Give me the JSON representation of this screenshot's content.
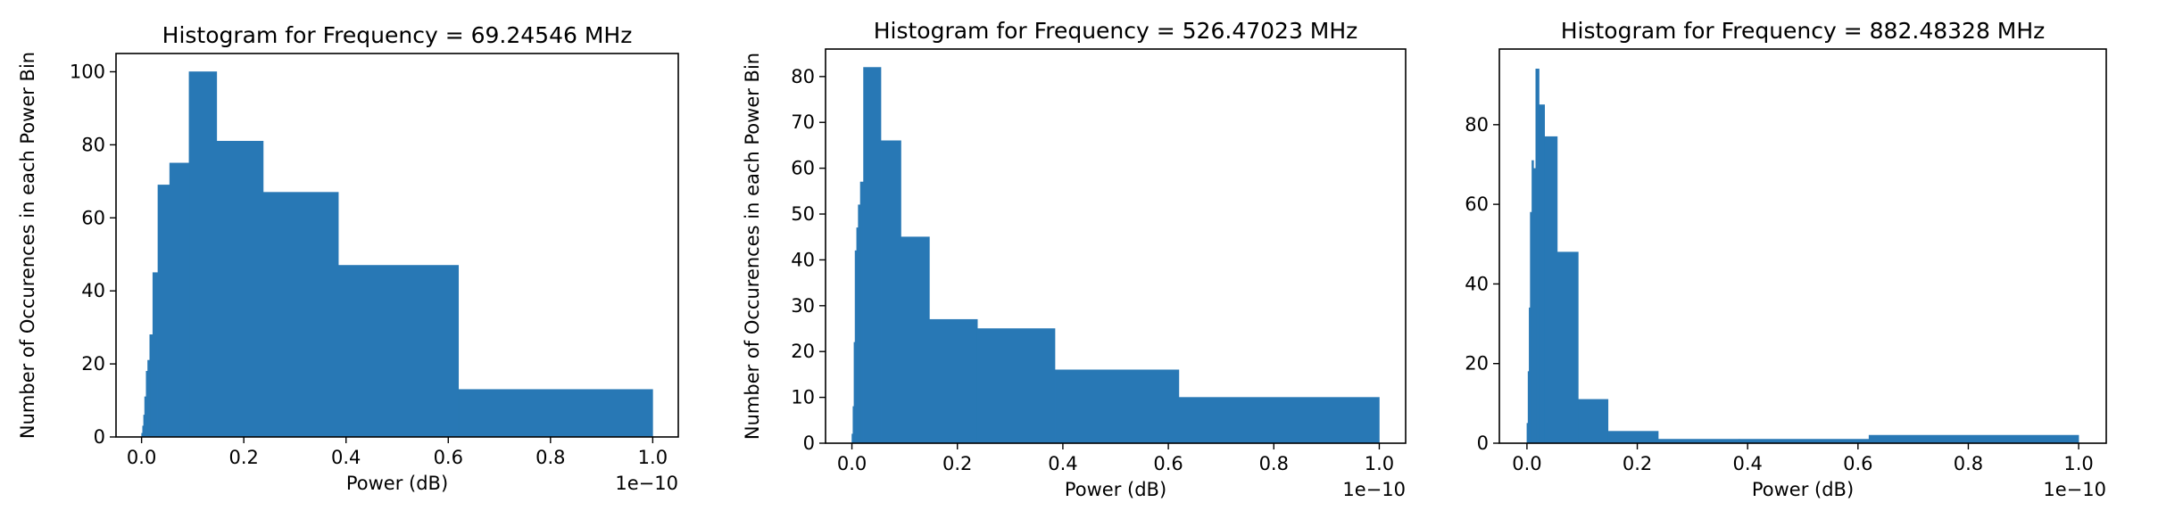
{
  "chart_data": [
    {
      "type": "bar",
      "title": "Histogram for Frequency = 69.24546 MHz",
      "xlabel": "Power (dB)",
      "ylabel": "Number of Occurences in each Power Bin",
      "x_offset_text": "1e−10",
      "xlim": [
        -0.05,
        1.05
      ],
      "ylim": [
        0,
        105
      ],
      "xticks": [
        0.0,
        0.2,
        0.4,
        0.6,
        0.8,
        1.0
      ],
      "xtick_labels": [
        "0.0",
        "0.2",
        "0.4",
        "0.6",
        "0.8",
        "1.0"
      ],
      "yticks": [
        0,
        20,
        40,
        60,
        80,
        100
      ],
      "ytick_labels": [
        "0",
        "20",
        "40",
        "60",
        "80",
        "100"
      ],
      "grid": false,
      "bins": [
        {
          "x0": 0.0,
          "x1": 0.002,
          "value": 1
        },
        {
          "x0": 0.002,
          "x1": 0.004,
          "value": 3
        },
        {
          "x0": 0.004,
          "x1": 0.006,
          "value": 6
        },
        {
          "x0": 0.006,
          "x1": 0.009,
          "value": 11
        },
        {
          "x0": 0.009,
          "x1": 0.012,
          "value": 18
        },
        {
          "x0": 0.012,
          "x1": 0.016,
          "value": 21
        },
        {
          "x0": 0.016,
          "x1": 0.022,
          "value": 28
        },
        {
          "x0": 0.022,
          "x1": 0.032,
          "value": 45
        },
        {
          "x0": 0.032,
          "x1": 0.055,
          "value": 69
        },
        {
          "x0": 0.055,
          "x1": 0.093,
          "value": 75
        },
        {
          "x0": 0.093,
          "x1": 0.147,
          "value": 100
        },
        {
          "x0": 0.147,
          "x1": 0.238,
          "value": 81
        },
        {
          "x0": 0.238,
          "x1": 0.385,
          "value": 67
        },
        {
          "x0": 0.385,
          "x1": 0.62,
          "value": 47
        },
        {
          "x0": 0.62,
          "x1": 1.0,
          "value": 13
        }
      ]
    },
    {
      "type": "bar",
      "title": "Histogram for Frequency = 526.47023 MHz",
      "xlabel": "Power (dB)",
      "ylabel": "Number of Occurences in each Power Bin",
      "x_offset_text": "1e−10",
      "xlim": [
        -0.05,
        1.05
      ],
      "ylim": [
        0,
        86
      ],
      "xticks": [
        0.0,
        0.2,
        0.4,
        0.6,
        0.8,
        1.0
      ],
      "xtick_labels": [
        "0.0",
        "0.2",
        "0.4",
        "0.6",
        "0.8",
        "1.0"
      ],
      "yticks": [
        0,
        10,
        20,
        30,
        40,
        50,
        60,
        70,
        80
      ],
      "ytick_labels": [
        "0",
        "10",
        "20",
        "30",
        "40",
        "50",
        "60",
        "70",
        "80"
      ],
      "grid": false,
      "bins": [
        {
          "x0": 0.0,
          "x1": 0.002,
          "value": 2
        },
        {
          "x0": 0.002,
          "x1": 0.004,
          "value": 8
        },
        {
          "x0": 0.004,
          "x1": 0.006,
          "value": 22
        },
        {
          "x0": 0.006,
          "x1": 0.009,
          "value": 42
        },
        {
          "x0": 0.009,
          "x1": 0.012,
          "value": 47
        },
        {
          "x0": 0.012,
          "x1": 0.016,
          "value": 52
        },
        {
          "x0": 0.016,
          "x1": 0.022,
          "value": 57
        },
        {
          "x0": 0.022,
          "x1": 0.055,
          "value": 82
        },
        {
          "x0": 0.055,
          "x1": 0.093,
          "value": 66
        },
        {
          "x0": 0.093,
          "x1": 0.147,
          "value": 45
        },
        {
          "x0": 0.147,
          "x1": 0.238,
          "value": 27
        },
        {
          "x0": 0.238,
          "x1": 0.385,
          "value": 25
        },
        {
          "x0": 0.385,
          "x1": 0.62,
          "value": 16
        },
        {
          "x0": 0.62,
          "x1": 1.0,
          "value": 10
        }
      ]
    },
    {
      "type": "bar",
      "title": "Histogram for Frequency = 882.48328 MHz",
      "xlabel": "Power (dB)",
      "ylabel": "Number of Occurences in each Power Bin",
      "x_offset_text": "1e−10",
      "xlim": [
        -0.05,
        1.05
      ],
      "ylim": [
        0,
        99
      ],
      "xticks": [
        0.0,
        0.2,
        0.4,
        0.6,
        0.8,
        1.0
      ],
      "xtick_labels": [
        "0.0",
        "0.2",
        "0.4",
        "0.6",
        "0.8",
        "1.0"
      ],
      "yticks": [
        0,
        20,
        40,
        60,
        80
      ],
      "ytick_labels": [
        "0",
        "20",
        "40",
        "60",
        "80"
      ],
      "grid": false,
      "bins": [
        {
          "x0": 0.0,
          "x1": 0.002,
          "value": 5
        },
        {
          "x0": 0.002,
          "x1": 0.004,
          "value": 18
        },
        {
          "x0": 0.004,
          "x1": 0.006,
          "value": 34
        },
        {
          "x0": 0.006,
          "x1": 0.009,
          "value": 58
        },
        {
          "x0": 0.009,
          "x1": 0.012,
          "value": 71
        },
        {
          "x0": 0.012,
          "x1": 0.016,
          "value": 69
        },
        {
          "x0": 0.016,
          "x1": 0.022,
          "value": 94
        },
        {
          "x0": 0.022,
          "x1": 0.032,
          "value": 85
        },
        {
          "x0": 0.032,
          "x1": 0.055,
          "value": 77
        },
        {
          "x0": 0.055,
          "x1": 0.093,
          "value": 48
        },
        {
          "x0": 0.093,
          "x1": 0.147,
          "value": 11
        },
        {
          "x0": 0.147,
          "x1": 0.238,
          "value": 3
        },
        {
          "x0": 0.238,
          "x1": 0.385,
          "value": 1
        },
        {
          "x0": 0.385,
          "x1": 0.62,
          "value": 1
        },
        {
          "x0": 0.62,
          "x1": 1.0,
          "value": 2
        }
      ]
    }
  ]
}
